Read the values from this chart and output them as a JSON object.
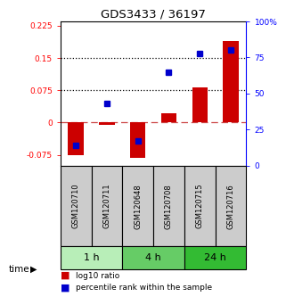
{
  "title": "GDS3433 / 36197",
  "samples": [
    "GSM120710",
    "GSM120711",
    "GSM120648",
    "GSM120708",
    "GSM120715",
    "GSM120716"
  ],
  "log10_ratio": [
    -0.075,
    -0.005,
    -0.082,
    0.022,
    0.082,
    0.19
  ],
  "percentile_rank": [
    0.14,
    0.43,
    0.17,
    0.65,
    0.78,
    0.8
  ],
  "time_groups": [
    {
      "label": "1 h",
      "cols": [
        0,
        1
      ],
      "color": "#b8eeb8"
    },
    {
      "label": "4 h",
      "cols": [
        2,
        3
      ],
      "color": "#66cc66"
    },
    {
      "label": "24 h",
      "cols": [
        4,
        5
      ],
      "color": "#33bb33"
    }
  ],
  "bar_color": "#cc0000",
  "dot_color": "#0000cc",
  "ylim_left": [
    -0.1,
    0.235
  ],
  "ylim_right": [
    0,
    1.0
  ],
  "yticks_left": [
    -0.075,
    0,
    0.075,
    0.15,
    0.225
  ],
  "ytick_labels_left": [
    "-0.075",
    "0",
    "0.075",
    "0.15",
    "0.225"
  ],
  "yticks_right": [
    0,
    0.25,
    0.5,
    0.75,
    1.0
  ],
  "ytick_labels_right": [
    "0",
    "25",
    "50",
    "75",
    "100%"
  ],
  "hlines": [
    0.075,
    0.15
  ],
  "zero_line": 0,
  "background_color": "#ffffff",
  "plot_bg_color": "#ffffff",
  "sample_box_color": "#cccccc",
  "time_label": "time",
  "legend_log10": "log10 ratio",
  "legend_pct": "percentile rank within the sample"
}
